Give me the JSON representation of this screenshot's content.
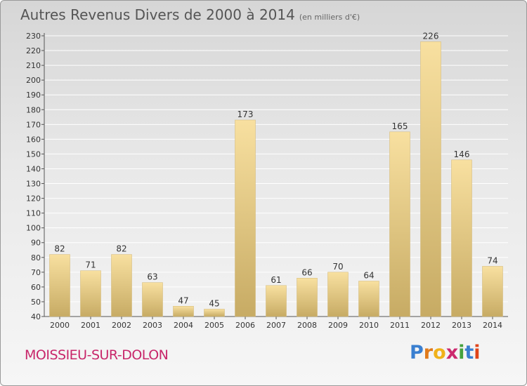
{
  "header": {
    "title": "Autres Revenus Divers de 2000 à 2014",
    "unit": "(en milliers d'€)"
  },
  "footer": {
    "place": "MOISSIEU-SUR-DOLON",
    "logo": "Proxiti"
  },
  "colors": {
    "bar_light": "#f8e0a0",
    "bar_dark": "#c7ab64",
    "title": "#555555",
    "place": "#c8266a"
  },
  "chart_data": {
    "type": "bar",
    "categories": [
      "2000",
      "2001",
      "2002",
      "2003",
      "2004",
      "2005",
      "2006",
      "2007",
      "2008",
      "2009",
      "2010",
      "2011",
      "2012",
      "2013",
      "2014"
    ],
    "values": [
      82,
      71,
      82,
      63,
      47,
      45,
      173,
      61,
      66,
      70,
      64,
      165,
      226,
      146,
      74
    ],
    "ylim": [
      40,
      230
    ],
    "yticks": [
      40,
      50,
      60,
      70,
      80,
      90,
      100,
      110,
      120,
      130,
      140,
      150,
      160,
      170,
      180,
      190,
      200,
      210,
      220,
      230
    ],
    "grid": true
  }
}
